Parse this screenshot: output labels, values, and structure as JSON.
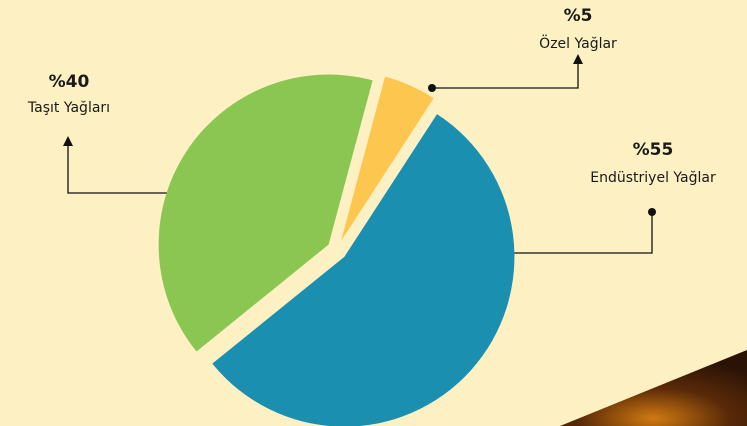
{
  "chart_data": {
    "type": "pie",
    "categories": [
      "Özel Yağlar",
      "Endüstriyel Yağlar",
      "Taşıt Yağları"
    ],
    "values": [
      5,
      55,
      40
    ],
    "value_labels": [
      "%5",
      "%55",
      "%40"
    ],
    "colors": [
      "#fcc64f",
      "#1b8fb0",
      "#8bc653"
    ]
  }
}
